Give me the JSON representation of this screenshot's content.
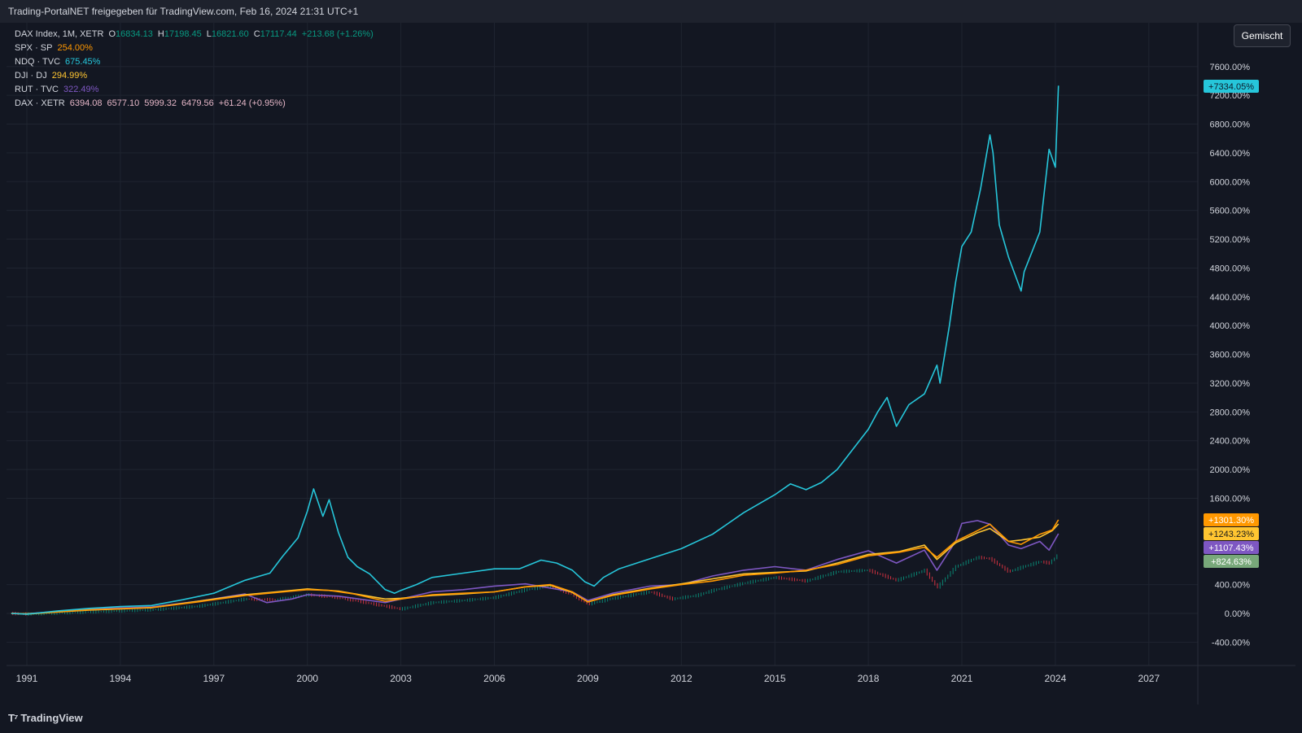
{
  "header": {
    "shared_by": "Trading-PortalNET freigegeben für TradingView.com, Feb 16, 2024 21:31 UTC+1"
  },
  "legend": {
    "main": {
      "label": "DAX Index, 1M, XETR",
      "o_label": "O",
      "o": "16834.13",
      "h_label": "H",
      "h": "17198.45",
      "l_label": "L",
      "l": "16821.60",
      "c_label": "C",
      "c": "17117.44",
      "chg": "+213.68 (+1.26%)"
    },
    "spx": {
      "label": "SPX · SP",
      "value": "254.00%"
    },
    "ndq": {
      "label": "NDQ · TVC",
      "value": "675.45%"
    },
    "dji": {
      "label": "DJI · DJ",
      "value": "294.99%"
    },
    "rut": {
      "label": "RUT · TVC",
      "value": "322.49%"
    },
    "dax": {
      "label": "DAX · XETR",
      "o": "6394.08",
      "h": "6577.10",
      "l": "5999.32",
      "c": "6479.56",
      "chg": "+61.24 (+0.95%)"
    }
  },
  "scale_mode": "Gemischt",
  "branding": {
    "logo_text": "TradingView"
  },
  "colors": {
    "background": "#131722",
    "grid": "#1f2430",
    "NDQ": "#26c6da",
    "SPX": "#ff9800",
    "DJI": "#ffc531",
    "RUT": "#7e57c2",
    "DAX": "#78a87a",
    "up": "#089981",
    "down": "#f23645",
    "dax_legend": "#e6b7c8"
  },
  "chart_data": {
    "type": "line",
    "title": "",
    "x_axis": {
      "ticks": [
        "1991",
        "1994",
        "1997",
        "2000",
        "2003",
        "2006",
        "2009",
        "2012",
        "2015",
        "2018",
        "2021",
        "2024",
        "2027"
      ]
    },
    "y_axis": {
      "unit": "%",
      "ticks": [
        "7600.00%",
        "7200.00%",
        "6800.00%",
        "6400.00%",
        "6000.00%",
        "5600.00%",
        "5200.00%",
        "4800.00%",
        "4400.00%",
        "4000.00%",
        "3600.00%",
        "3200.00%",
        "2800.00%",
        "2400.00%",
        "2000.00%",
        "1600.00%",
        "400.00%",
        "0.00%",
        "-400.00%"
      ],
      "range": [
        -800,
        7600
      ]
    },
    "grid": true,
    "series": [
      {
        "name": "NDQ",
        "last_label": "+7334.05%",
        "points": [
          [
            1990.5,
            0
          ],
          [
            1991.0,
            -10
          ],
          [
            1992.0,
            35
          ],
          [
            1993.0,
            70
          ],
          [
            1994.0,
            95
          ],
          [
            1995.0,
            110
          ],
          [
            1996.0,
            190
          ],
          [
            1997.0,
            280
          ],
          [
            1998.0,
            460
          ],
          [
            1998.8,
            560
          ],
          [
            1999.2,
            790
          ],
          [
            1999.7,
            1050
          ],
          [
            2000.0,
            1420
          ],
          [
            2000.2,
            1730
          ],
          [
            2000.5,
            1350
          ],
          [
            2000.7,
            1580
          ],
          [
            2001.0,
            1120
          ],
          [
            2001.3,
            780
          ],
          [
            2001.6,
            650
          ],
          [
            2002.0,
            550
          ],
          [
            2002.5,
            330
          ],
          [
            2002.8,
            280
          ],
          [
            2003.0,
            320
          ],
          [
            2003.5,
            400
          ],
          [
            2004.0,
            500
          ],
          [
            2005.0,
            560
          ],
          [
            2006.0,
            620
          ],
          [
            2006.8,
            620
          ],
          [
            2007.5,
            740
          ],
          [
            2008.0,
            700
          ],
          [
            2008.5,
            600
          ],
          [
            2008.9,
            440
          ],
          [
            2009.2,
            380
          ],
          [
            2009.5,
            500
          ],
          [
            2010.0,
            620
          ],
          [
            2011.0,
            760
          ],
          [
            2012.0,
            900
          ],
          [
            2013.0,
            1100
          ],
          [
            2014.0,
            1400
          ],
          [
            2015.0,
            1650
          ],
          [
            2015.5,
            1800
          ],
          [
            2016.0,
            1720
          ],
          [
            2016.5,
            1820
          ],
          [
            2017.0,
            2000
          ],
          [
            2018.0,
            2560
          ],
          [
            2018.3,
            2800
          ],
          [
            2018.6,
            3000
          ],
          [
            2018.9,
            2600
          ],
          [
            2019.3,
            2900
          ],
          [
            2019.8,
            3050
          ],
          [
            2020.2,
            3450
          ],
          [
            2020.3,
            3200
          ],
          [
            2020.6,
            4000
          ],
          [
            2020.8,
            4600
          ],
          [
            2021.0,
            5100
          ],
          [
            2021.3,
            5300
          ],
          [
            2021.6,
            5900
          ],
          [
            2021.9,
            6650
          ],
          [
            2022.0,
            6400
          ],
          [
            2022.2,
            5400
          ],
          [
            2022.5,
            4950
          ],
          [
            2022.8,
            4600
          ],
          [
            2022.9,
            4480
          ],
          [
            2023.0,
            4750
          ],
          [
            2023.5,
            5300
          ],
          [
            2023.8,
            6450
          ],
          [
            2024.0,
            6200
          ],
          [
            2024.1,
            7334.05
          ]
        ]
      },
      {
        "name": "SPX",
        "last_label": "+1301.30%",
        "points": [
          [
            1990.5,
            0
          ],
          [
            1991.0,
            -10
          ],
          [
            1993.0,
            50
          ],
          [
            1995.0,
            80
          ],
          [
            1996.5,
            160
          ],
          [
            1998.0,
            250
          ],
          [
            1999.0,
            290
          ],
          [
            2000.0,
            330
          ],
          [
            2000.7,
            320
          ],
          [
            2001.5,
            270
          ],
          [
            2002.5,
            170
          ],
          [
            2003.0,
            200
          ],
          [
            2004.0,
            260
          ],
          [
            2005.0,
            280
          ],
          [
            2006.0,
            300
          ],
          [
            2007.0,
            370
          ],
          [
            2007.8,
            400
          ],
          [
            2008.5,
            300
          ],
          [
            2009.0,
            160
          ],
          [
            2009.8,
            250
          ],
          [
            2011.0,
            340
          ],
          [
            2012.0,
            400
          ],
          [
            2013.0,
            450
          ],
          [
            2014.0,
            530
          ],
          [
            2015.0,
            560
          ],
          [
            2016.0,
            600
          ],
          [
            2017.0,
            680
          ],
          [
            2018.0,
            800
          ],
          [
            2019.0,
            850
          ],
          [
            2019.8,
            920
          ],
          [
            2020.2,
            780
          ],
          [
            2020.8,
            1000
          ],
          [
            2021.5,
            1150
          ],
          [
            2021.9,
            1240
          ],
          [
            2022.5,
            1000
          ],
          [
            2022.9,
            960
          ],
          [
            2023.5,
            1100
          ],
          [
            2023.9,
            1160
          ],
          [
            2024.1,
            1301.3
          ]
        ]
      },
      {
        "name": "DJI",
        "last_label": "+1243.23%",
        "points": [
          [
            1990.5,
            0
          ],
          [
            1991.0,
            -5
          ],
          [
            1993.0,
            45
          ],
          [
            1995.0,
            80
          ],
          [
            1996.5,
            170
          ],
          [
            1998.0,
            260
          ],
          [
            1999.0,
            300
          ],
          [
            2000.0,
            340
          ],
          [
            2001.0,
            310
          ],
          [
            2002.5,
            200
          ],
          [
            2003.0,
            210
          ],
          [
            2004.0,
            250
          ],
          [
            2005.0,
            270
          ],
          [
            2006.0,
            300
          ],
          [
            2007.0,
            370
          ],
          [
            2007.8,
            390
          ],
          [
            2008.5,
            290
          ],
          [
            2009.0,
            160
          ],
          [
            2009.8,
            260
          ],
          [
            2011.0,
            350
          ],
          [
            2012.0,
            410
          ],
          [
            2013.0,
            480
          ],
          [
            2014.0,
            550
          ],
          [
            2015.0,
            570
          ],
          [
            2016.0,
            590
          ],
          [
            2017.0,
            700
          ],
          [
            2018.0,
            820
          ],
          [
            2019.0,
            860
          ],
          [
            2019.8,
            950
          ],
          [
            2020.2,
            750
          ],
          [
            2020.8,
            980
          ],
          [
            2021.5,
            1120
          ],
          [
            2021.9,
            1180
          ],
          [
            2022.5,
            1000
          ],
          [
            2022.9,
            1020
          ],
          [
            2023.5,
            1060
          ],
          [
            2023.9,
            1150
          ],
          [
            2024.1,
            1243.23
          ]
        ]
      },
      {
        "name": "RUT",
        "last_label": "+1107.43%",
        "points": [
          [
            1990.5,
            0
          ],
          [
            1991.0,
            -5
          ],
          [
            1993.0,
            60
          ],
          [
            1995.0,
            90
          ],
          [
            1996.5,
            170
          ],
          [
            1998.0,
            270
          ],
          [
            1998.7,
            150
          ],
          [
            1999.5,
            200
          ],
          [
            2000.0,
            260
          ],
          [
            2001.0,
            240
          ],
          [
            2002.5,
            150
          ],
          [
            2003.0,
            200
          ],
          [
            2004.0,
            300
          ],
          [
            2005.0,
            330
          ],
          [
            2006.0,
            380
          ],
          [
            2007.0,
            410
          ],
          [
            2008.5,
            300
          ],
          [
            2009.0,
            180
          ],
          [
            2009.8,
            280
          ],
          [
            2011.0,
            380
          ],
          [
            2012.0,
            400
          ],
          [
            2013.0,
            520
          ],
          [
            2014.0,
            600
          ],
          [
            2015.0,
            650
          ],
          [
            2016.0,
            600
          ],
          [
            2017.0,
            750
          ],
          [
            2018.0,
            870
          ],
          [
            2018.9,
            700
          ],
          [
            2019.8,
            880
          ],
          [
            2020.2,
            600
          ],
          [
            2020.8,
            1000
          ],
          [
            2021.0,
            1250
          ],
          [
            2021.5,
            1290
          ],
          [
            2021.9,
            1240
          ],
          [
            2022.5,
            950
          ],
          [
            2022.9,
            900
          ],
          [
            2023.5,
            1000
          ],
          [
            2023.8,
            880
          ],
          [
            2024.1,
            1107.43
          ]
        ]
      },
      {
        "name": "DAX",
        "last_label": "+824.63%",
        "points": [
          [
            1990.5,
            0
          ],
          [
            1991.0,
            -10
          ],
          [
            1993.0,
            20
          ],
          [
            1995.0,
            50
          ],
          [
            1996.5,
            100
          ],
          [
            1998.0,
            200
          ],
          [
            1999.0,
            190
          ],
          [
            2000.0,
            260
          ],
          [
            2001.0,
            220
          ],
          [
            2002.5,
            100
          ],
          [
            2003.0,
            60
          ],
          [
            2004.0,
            150
          ],
          [
            2005.0,
            180
          ],
          [
            2006.0,
            220
          ],
          [
            2007.0,
            330
          ],
          [
            2007.8,
            380
          ],
          [
            2008.5,
            260
          ],
          [
            2009.0,
            130
          ],
          [
            2009.8,
            210
          ],
          [
            2011.0,
            300
          ],
          [
            2011.7,
            200
          ],
          [
            2012.5,
            250
          ],
          [
            2013.0,
            320
          ],
          [
            2014.0,
            420
          ],
          [
            2015.0,
            500
          ],
          [
            2016.0,
            450
          ],
          [
            2017.0,
            580
          ],
          [
            2018.0,
            600
          ],
          [
            2018.9,
            460
          ],
          [
            2019.8,
            600
          ],
          [
            2020.2,
            360
          ],
          [
            2020.8,
            650
          ],
          [
            2021.5,
            780
          ],
          [
            2021.9,
            760
          ],
          [
            2022.5,
            580
          ],
          [
            2022.9,
            640
          ],
          [
            2023.5,
            720
          ],
          [
            2023.8,
            700
          ],
          [
            2024.1,
            824.63
          ]
        ]
      }
    ]
  }
}
